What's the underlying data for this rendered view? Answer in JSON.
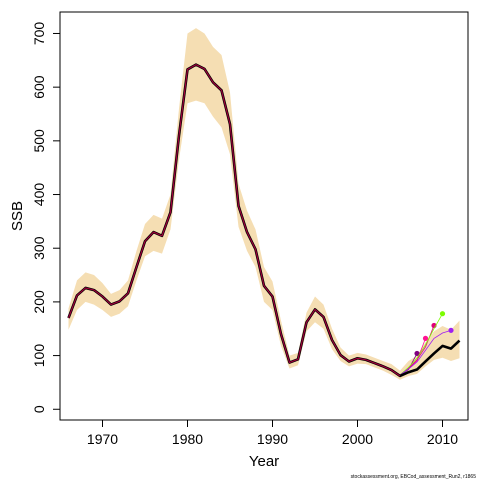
{
  "chart_data": {
    "type": "line",
    "title": "",
    "xlabel": "Year",
    "ylabel": "SSB",
    "xlim": [
      1965,
      2013
    ],
    "ylim": [
      -20,
      740
    ],
    "x_ticks": [
      1970,
      1980,
      1990,
      2000,
      2010
    ],
    "x_tick_labels": [
      "1970",
      "1980",
      "1990",
      "2000",
      "2010"
    ],
    "y_ticks": [
      0,
      100,
      200,
      300,
      400,
      500,
      600,
      700
    ],
    "y_tick_labels": [
      "0",
      "100",
      "200",
      "300",
      "400",
      "500",
      "600",
      "700"
    ],
    "grid": false,
    "legend": "none",
    "footnote": "stockassessment.org, EBCod_assessment_Run2, r1865",
    "colors": {
      "band": "#f5deb3",
      "main_line": "#000000",
      "retro_1": "#800080",
      "retro_2": "#ff1493",
      "retro_3": "#e0007a",
      "retro_4": "#e8006e",
      "retro_5": "#7cfc00",
      "retro_6": "#a020f0"
    },
    "band": {
      "x": [
        1966,
        1967,
        1968,
        1969,
        1970,
        1971,
        1972,
        1973,
        1974,
        1975,
        1976,
        1977,
        1978,
        1979,
        1980,
        1981,
        1982,
        1983,
        1984,
        1985,
        1986,
        1987,
        1988,
        1989,
        1990,
        1991,
        1992,
        1993,
        1994,
        1995,
        1996,
        1997,
        1998,
        1999,
        2000,
        2001,
        2002,
        2003,
        2004,
        2005,
        2006,
        2007,
        2008,
        2009,
        2010,
        2011,
        2012
      ],
      "upper": [
        188,
        240,
        255,
        250,
        235,
        215,
        222,
        240,
        295,
        345,
        362,
        355,
        400,
        560,
        700,
        710,
        700,
        675,
        660,
        590,
        420,
        370,
        335,
        265,
        238,
        165,
        100,
        105,
        180,
        210,
        195,
        150,
        115,
        100,
        105,
        102,
        96,
        90,
        84,
        72,
        90,
        100,
        125,
        145,
        155,
        148,
        165
      ],
      "lower": [
        148,
        185,
        200,
        195,
        185,
        172,
        178,
        192,
        240,
        285,
        295,
        290,
        335,
        465,
        570,
        575,
        570,
        545,
        525,
        475,
        340,
        295,
        265,
        200,
        185,
        118,
        76,
        82,
        145,
        162,
        150,
        112,
        90,
        80,
        85,
        84,
        78,
        72,
        64,
        55,
        62,
        66,
        80,
        92,
        96,
        90,
        95
      ]
    },
    "series": [
      {
        "name": "",
        "role": "main",
        "x": [
          1966,
          1967,
          1968,
          1969,
          1970,
          1971,
          1972,
          1973,
          1974,
          1975,
          1976,
          1977,
          1978,
          1979,
          1980,
          1981,
          1982,
          1983,
          1984,
          1985,
          1986,
          1987,
          1988,
          1989,
          1990,
          1991,
          1992,
          1993,
          1994,
          1995,
          1996,
          1997,
          1998,
          1999,
          2000,
          2001,
          2002,
          2003,
          2004,
          2005,
          2006,
          2007,
          2008,
          2009,
          2010,
          2011,
          2012
        ],
        "y": [
          170,
          212,
          226,
          222,
          210,
          195,
          201,
          216,
          265,
          313,
          330,
          323,
          367,
          510,
          633,
          642,
          634,
          609,
          594,
          531,
          379,
          330,
          298,
          230,
          210,
          140,
          87,
          93,
          162,
          186,
          172,
          129,
          101,
          89,
          95,
          92,
          86,
          80,
          73,
          62,
          69,
          74,
          89,
          104,
          118,
          113,
          128
        ]
      },
      {
        "name": "",
        "role": "retro",
        "x": [
          2004,
          2005,
          2006,
          2007
        ],
        "y": [
          73,
          64,
          74,
          104
        ]
      },
      {
        "name": "",
        "role": "retro",
        "x": [
          2004,
          2005,
          2006,
          2007,
          2008
        ],
        "y": [
          73,
          64,
          76,
          90,
          132
        ]
      },
      {
        "name": "",
        "role": "retro",
        "x": [
          2004,
          2005,
          2006,
          2007,
          2008,
          2009
        ],
        "y": [
          73,
          64,
          76,
          92,
          116,
          156
        ]
      },
      {
        "name": "",
        "role": "retro",
        "x": [
          2004,
          2005,
          2006,
          2007,
          2008,
          2009,
          2010
        ],
        "y": [
          73,
          64,
          78,
          95,
          120,
          150,
          178
        ]
      },
      {
        "name": "",
        "role": "retro",
        "x": [
          2004,
          2005,
          2006,
          2007,
          2008,
          2009,
          2010,
          2011
        ],
        "y": [
          73,
          64,
          75,
          88,
          110,
          132,
          142,
          147
        ]
      }
    ]
  }
}
